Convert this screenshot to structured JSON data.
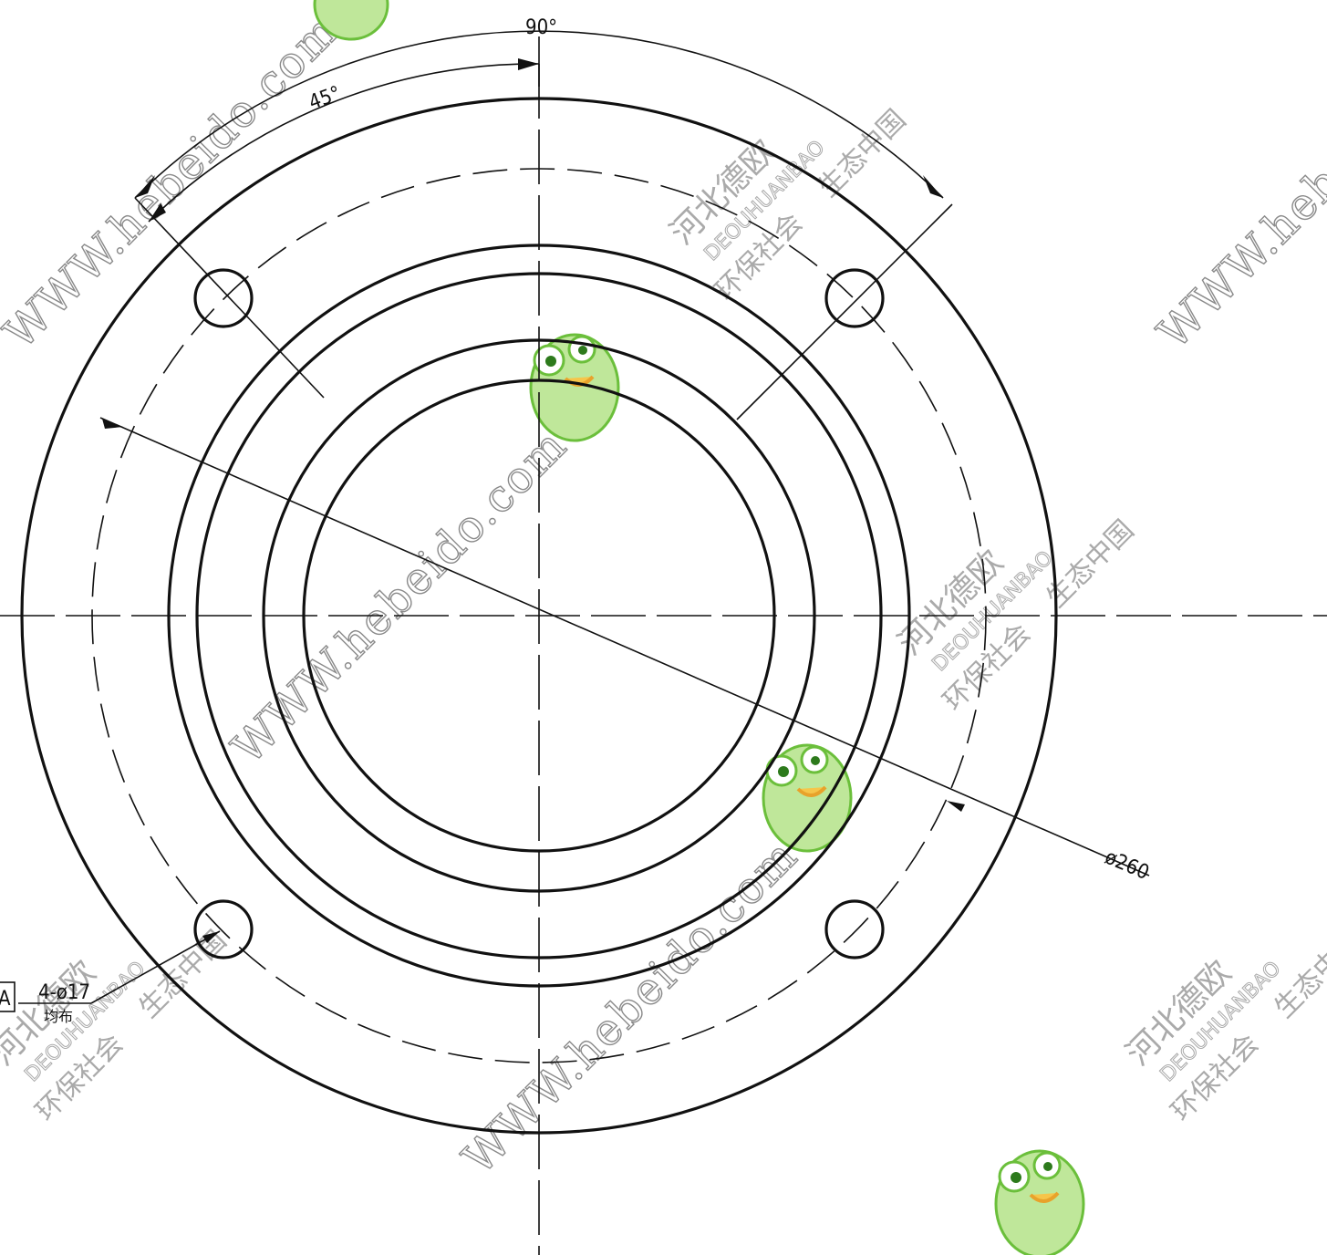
{
  "drawing": {
    "dimensions": {
      "angle_total": "90°",
      "angle_half": "45°",
      "diameter_label": "ø260",
      "hole_callout": "4-ø17",
      "hole_note": "均布",
      "datum_label": "A"
    },
    "watermark": {
      "url_text": "WWW.hebeido.com",
      "brand_cn": "河北德欧",
      "brand_en": "DEOUHUANBAO",
      "slogan_left": "环保社会",
      "slogan_right": "生态中国",
      "mascot": "frog-mascot-icon"
    }
  }
}
